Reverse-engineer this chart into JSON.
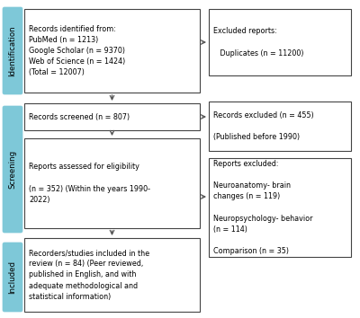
{
  "bg_color": "#ffffff",
  "sidebar_color": "#7ec8d8",
  "box_edge_color": "#444444",
  "arrow_color": "#555555",
  "box1_text": "Records identified from:\nPubMed (n = 1213)\nGoogle Scholar (n = 9370)\nWeb of Science (n = 1424)\n(Total = 12007)",
  "box2_text": "Records screened (n = 807)",
  "box3_text": "Reports assessed for eligibility\n\n(n = 352) (Within the years 1990-\n2022)",
  "box4_text": "Recorders/studies included in the\nreview (n = 84) (Peer reviewed,\npublished in English, and with\nadequate methodological and\nstatistical information)",
  "box_r1_text": "Excluded reports:\n\n   Duplicates (n = 11200)",
  "box_r2_text": "Records excluded (n = 455)\n\n(Published before 1990)",
  "box_r3_text": "Reports excluded:\n\nNeuroanatomy- brain\nchanges (n = 119)\n\nNeuropsychology- behavior\n(n = 114)\n\nComparison (n = 35)",
  "fontsize": 5.8,
  "sidebar_fontsize": 6.2
}
